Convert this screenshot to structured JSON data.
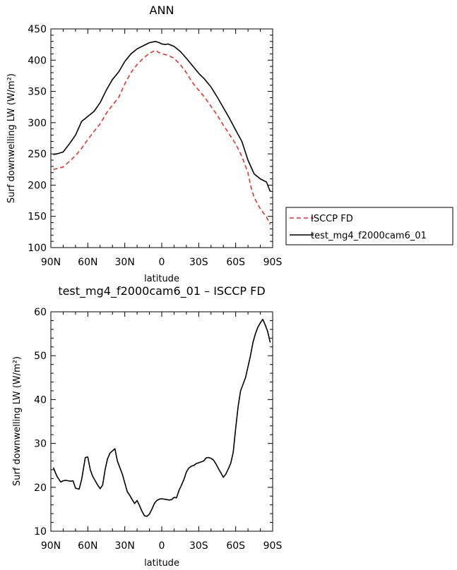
{
  "chart_data": [
    {
      "type": "line",
      "title": "ANN",
      "xlabel": "latitude",
      "ylabel": "Surf downwelling LW (W/m²)",
      "ylim": [
        100,
        450
      ],
      "xlim": [
        90,
        -90
      ],
      "x_tick_labels": [
        "90N",
        "60N",
        "30N",
        "0",
        "30S",
        "60S",
        "90S"
      ],
      "y_tick_labels": [
        "100",
        "150",
        "200",
        "250",
        "300",
        "350",
        "400",
        "450"
      ],
      "grid": false,
      "legend": "right",
      "series": [
        {
          "name": "ISCCP FD",
          "color": "#e8312a",
          "dash": "dashed",
          "x": [
            88,
            80,
            75,
            70,
            65,
            60,
            55,
            50,
            45,
            40,
            35,
            30,
            25,
            20,
            15,
            10,
            5,
            3,
            0,
            -5,
            -10,
            -15,
            -20,
            -25,
            -30,
            -35,
            -40,
            -45,
            -50,
            -55,
            -60,
            -65,
            -70,
            -72,
            -75,
            -80,
            -85,
            -88
          ],
          "y": [
            225,
            229,
            238,
            247,
            259,
            273,
            286,
            298,
            315,
            328,
            340,
            362,
            380,
            393,
            403,
            411,
            416,
            413,
            410,
            408,
            403,
            393,
            380,
            364,
            352,
            340,
            326,
            312,
            296,
            281,
            266,
            246,
            220,
            200,
            180,
            162,
            149,
            137
          ]
        },
        {
          "name": "test_mg4_f2000cam6_01",
          "color": "#000000",
          "dash": "solid",
          "x": [
            88,
            85,
            80,
            75,
            70,
            65,
            60,
            55,
            50,
            45,
            40,
            35,
            30,
            25,
            20,
            15,
            10,
            5,
            2,
            0,
            -3,
            -5,
            -10,
            -15,
            -20,
            -25,
            -30,
            -35,
            -40,
            -45,
            -50,
            -55,
            -60,
            -65,
            -70,
            -75,
            -80,
            -85,
            -88
          ],
          "y": [
            249,
            250,
            253,
            266,
            280,
            302,
            310,
            318,
            332,
            352,
            369,
            381,
            398,
            410,
            418,
            423,
            428,
            430,
            428,
            426,
            425,
            426,
            422,
            414,
            403,
            391,
            379,
            369,
            357,
            341,
            324,
            307,
            288,
            270,
            240,
            218,
            210,
            205,
            190
          ]
        }
      ]
    },
    {
      "type": "line",
      "title": "test_mg4_f2000cam6_01 – ISCCP FD",
      "xlabel": "latitude",
      "ylabel": "Surf downwelling LW (W/m²)",
      "ylim": [
        10,
        60
      ],
      "xlim": [
        90,
        -90
      ],
      "x_tick_labels": [
        "90N",
        "60N",
        "30N",
        "0",
        "30S",
        "60S",
        "90S"
      ],
      "y_tick_labels": [
        "10",
        "20",
        "30",
        "40",
        "50",
        "60"
      ],
      "grid": false,
      "series": [
        {
          "color": "#000000",
          "dash": "solid",
          "x": [
            88,
            85,
            82,
            80,
            78,
            76,
            74,
            72,
            70,
            67,
            65,
            62,
            60,
            58,
            56,
            54,
            52,
            50,
            48,
            46,
            44,
            42,
            40,
            38,
            36,
            34,
            32,
            30,
            28,
            26,
            24,
            22,
            20,
            18,
            16,
            14,
            12,
            10,
            8,
            6,
            4,
            2,
            0,
            -2,
            -4,
            -6,
            -8,
            -10,
            -12,
            -14,
            -16,
            -18,
            -20,
            -22,
            -24,
            -26,
            -28,
            -30,
            -32,
            -34,
            -36,
            -38,
            -40,
            -42,
            -44,
            -46,
            -48,
            -50,
            -52,
            -54,
            -56,
            -58,
            -60,
            -62,
            -64,
            -66,
            -68,
            -70,
            -72,
            -74,
            -76,
            -78,
            -80,
            -82,
            -84,
            -86,
            -88
          ],
          "y": [
            24.5,
            22.5,
            21.2,
            21.5,
            21.6,
            21.5,
            21.4,
            21.5,
            19.8,
            19.6,
            21.8,
            26.8,
            26.9,
            24.0,
            22.5,
            21.5,
            20.5,
            19.7,
            20.5,
            24.0,
            26.5,
            27.8,
            28.3,
            28.8,
            26.0,
            24.5,
            23.0,
            21.0,
            19.0,
            18.2,
            17.2,
            16.3,
            17.0,
            15.8,
            14.5,
            13.5,
            13.4,
            13.9,
            15.0,
            16.3,
            17.0,
            17.3,
            17.4,
            17.3,
            17.2,
            17.1,
            17.2,
            17.7,
            17.6,
            19.3,
            20.5,
            21.8,
            23.5,
            24.4,
            24.8,
            25.0,
            25.4,
            25.6,
            25.8,
            26.0,
            26.7,
            26.8,
            26.6,
            26.2,
            25.3,
            24.3,
            23.3,
            22.3,
            23.0,
            24.2,
            25.5,
            28.0,
            33.5,
            38.5,
            42.0,
            43.5,
            45.0,
            47.5,
            50.0,
            53.0,
            55.0,
            56.5,
            57.5,
            58.3,
            57.0,
            55.5,
            53.0
          ]
        }
      ]
    }
  ]
}
